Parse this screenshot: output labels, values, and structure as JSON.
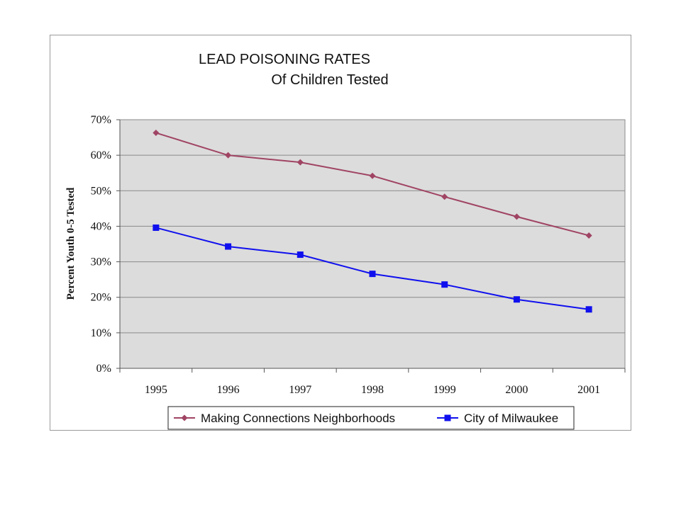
{
  "chart_data": {
    "type": "line",
    "title": [
      "LEAD POISONING RATES",
      "Of Children Tested"
    ],
    "ylabel": "Percent Youth 0-5 Tested",
    "xlabel": "",
    "categories": [
      "1995",
      "1996",
      "1997",
      "1998",
      "1999",
      "2000",
      "2001"
    ],
    "ylim": [
      0,
      70
    ],
    "yticks": [
      0,
      10,
      20,
      30,
      40,
      50,
      60,
      70
    ],
    "ytick_labels": [
      "0%",
      "10%",
      "20%",
      "30%",
      "40%",
      "50%",
      "60%",
      "70%"
    ],
    "grid": true,
    "legend_position": "bottom",
    "plot_background": "#dcdcdc",
    "series": [
      {
        "name": "Making Connections Neighborhoods",
        "color": "#a04464",
        "marker": "diamond",
        "values": [
          66.3,
          60.0,
          58.0,
          54.2,
          48.3,
          42.7,
          37.4
        ]
      },
      {
        "name": "City of Milwaukee",
        "color": "#1010ee",
        "marker": "square",
        "values": [
          39.6,
          34.3,
          32.0,
          26.6,
          23.6,
          19.4,
          16.6
        ]
      }
    ]
  }
}
